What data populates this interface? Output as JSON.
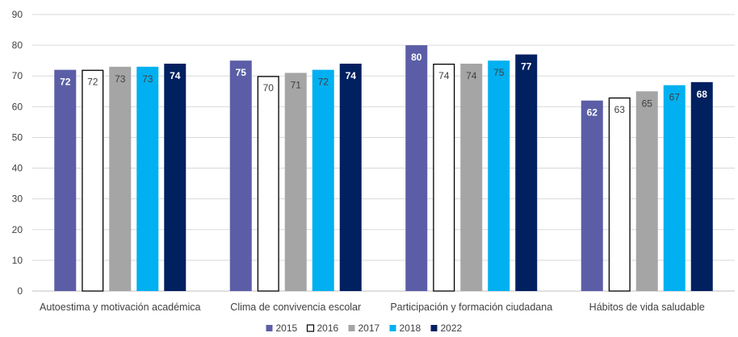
{
  "chart_data": {
    "type": "bar",
    "categories": [
      "Autoestima y motivación académica",
      "Clima de convivencia escolar",
      "Participación y formación ciudadana",
      "Hábitos de vida saludable"
    ],
    "series": [
      {
        "name": "2015",
        "values": [
          72,
          75,
          80,
          62
        ],
        "color": "#5b5ea6",
        "label_color": "#ffffff",
        "label_bold": true,
        "outline": false
      },
      {
        "name": "2016",
        "values": [
          72,
          70,
          74,
          63
        ],
        "color": "#ffffff",
        "label_color": "#404040",
        "label_bold": false,
        "outline": true
      },
      {
        "name": "2017",
        "values": [
          73,
          71,
          74,
          65
        ],
        "color": "#a5a5a5",
        "label_color": "#404040",
        "label_bold": false,
        "outline": false
      },
      {
        "name": "2018",
        "values": [
          73,
          72,
          75,
          67
        ],
        "color": "#00b0f0",
        "label_color": "#404040",
        "label_bold": false,
        "outline": false
      },
      {
        "name": "2022",
        "values": [
          74,
          74,
          77,
          68
        ],
        "color": "#002060",
        "label_color": "#ffffff",
        "label_bold": true,
        "outline": false
      }
    ],
    "title": "",
    "xlabel": "",
    "ylabel": "",
    "ylim": [
      0,
      90
    ],
    "yticks": [
      "0",
      "10",
      "20",
      "30",
      "40",
      "50",
      "60",
      "70",
      "80",
      "90"
    ],
    "grid": true,
    "legend_position": "bottom"
  }
}
